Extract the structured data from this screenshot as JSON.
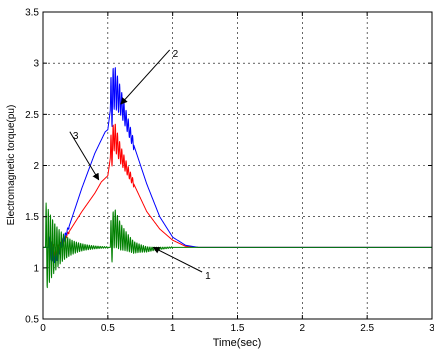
{
  "chart_data": {
    "type": "line",
    "title": "",
    "xlabel": "Time(sec)",
    "ylabel": "Electromagnetic torque(pu)",
    "xlim": [
      0,
      3
    ],
    "ylim": [
      0.5,
      3.5
    ],
    "xticks": [
      0,
      0.5,
      1,
      1.5,
      2,
      2.5,
      3
    ],
    "xtick_labels": [
      "0",
      "0.5",
      "1",
      "1.5",
      "2",
      "2.5",
      "3"
    ],
    "yticks": [
      0.5,
      1,
      1.5,
      2,
      2.5,
      3,
      3.5
    ],
    "ytick_labels": [
      "0.5",
      "1",
      "1.5",
      "2",
      "2.5",
      "3",
      "3.5"
    ],
    "grid": true,
    "series": [
      {
        "id": "1",
        "color": "#008000",
        "oscillation_zones": [
          {
            "from": 0.02,
            "to": 0.5,
            "amp": 0.45,
            "decay": 9,
            "freq": 60
          },
          {
            "from": 0.52,
            "to": 1.0,
            "amp": 0.25,
            "decay": 8,
            "freq": 60
          }
        ],
        "points": [
          [
            0,
            1.2
          ],
          [
            0.02,
            1.2
          ],
          [
            0.15,
            1.2
          ],
          [
            0.3,
            1.2
          ],
          [
            0.5,
            1.2
          ],
          [
            0.52,
            1.2
          ],
          [
            0.55,
            1.4
          ],
          [
            0.6,
            1.3
          ],
          [
            0.7,
            1.2
          ],
          [
            0.8,
            1.18
          ],
          [
            1.0,
            1.2
          ],
          [
            3.0,
            1.2
          ]
        ]
      },
      {
        "id": "2",
        "color": "#0000ff",
        "oscillation_zones": [
          {
            "from": 0.04,
            "to": 0.2,
            "amp": 0.12,
            "decay": 12,
            "freq": 55
          },
          {
            "from": 0.52,
            "to": 0.7,
            "amp": 0.3,
            "decay": 10,
            "freq": 60
          }
        ],
        "points": [
          [
            0,
            1.2
          ],
          [
            0.04,
            1.2
          ],
          [
            0.1,
            1.1
          ],
          [
            0.2,
            1.4
          ],
          [
            0.3,
            1.78
          ],
          [
            0.4,
            2.12
          ],
          [
            0.48,
            2.33
          ],
          [
            0.5,
            2.35
          ],
          [
            0.52,
            2.55
          ],
          [
            0.55,
            2.78
          ],
          [
            0.6,
            2.62
          ],
          [
            0.7,
            2.2
          ],
          [
            0.8,
            1.82
          ],
          [
            0.9,
            1.5
          ],
          [
            1.0,
            1.3
          ],
          [
            1.1,
            1.22
          ],
          [
            1.2,
            1.2
          ],
          [
            3.0,
            1.2
          ]
        ]
      },
      {
        "id": "3",
        "color": "#ff0000",
        "oscillation_zones": [
          {
            "from": 0.04,
            "to": 0.2,
            "amp": 0.1,
            "decay": 12,
            "freq": 55
          },
          {
            "from": 0.52,
            "to": 0.7,
            "amp": 0.2,
            "decay": 10,
            "freq": 60
          }
        ],
        "points": [
          [
            0,
            1.2
          ],
          [
            0.04,
            1.2
          ],
          [
            0.1,
            1.15
          ],
          [
            0.2,
            1.35
          ],
          [
            0.3,
            1.55
          ],
          [
            0.4,
            1.73
          ],
          [
            0.45,
            1.84
          ],
          [
            0.5,
            1.9
          ],
          [
            0.52,
            2.08
          ],
          [
            0.55,
            2.3
          ],
          [
            0.6,
            2.1
          ],
          [
            0.7,
            1.82
          ],
          [
            0.8,
            1.55
          ],
          [
            0.9,
            1.38
          ],
          [
            1.0,
            1.27
          ],
          [
            1.1,
            1.21
          ],
          [
            1.2,
            1.2
          ],
          [
            3.0,
            1.2
          ]
        ]
      }
    ],
    "annotations": [
      {
        "text": "1",
        "points_to": [
          0.85,
          1.2
        ]
      },
      {
        "text": "2",
        "points_to": [
          0.6,
          2.6
        ]
      },
      {
        "text": "3",
        "points_to": [
          0.43,
          1.86
        ]
      }
    ]
  }
}
